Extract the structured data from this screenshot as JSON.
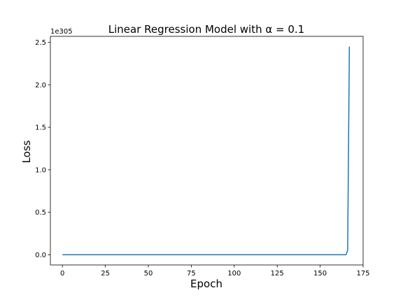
{
  "chart_data": {
    "type": "line",
    "title": "Linear Regression Model with α = 0.1",
    "xlabel": "Epoch",
    "ylabel": "Loss",
    "y_offset_text": "1e305",
    "xlim": [
      -7,
      175
    ],
    "ylim": [
      -0.12,
      2.57
    ],
    "grid": false,
    "x_ticks": [
      0,
      25,
      50,
      75,
      100,
      125,
      150,
      175
    ],
    "x_tick_labels": [
      "0",
      "25",
      "50",
      "75",
      "100",
      "125",
      "150",
      "175"
    ],
    "y_ticks": [
      0.0,
      0.5,
      1.0,
      1.5,
      2.0,
      2.5
    ],
    "y_tick_labels": [
      "0.0",
      "0.5",
      "1.0",
      "1.5",
      "2.0",
      "2.5"
    ],
    "series": [
      {
        "color": "#1f77b4",
        "x": [
          0,
          25,
          50,
          75,
          100,
          125,
          150,
          160,
          164,
          165,
          166,
          167
        ],
        "y": [
          0,
          0,
          0,
          0,
          0,
          0,
          0,
          0,
          0,
          0.0001,
          0.05,
          2.45
        ]
      }
    ]
  }
}
